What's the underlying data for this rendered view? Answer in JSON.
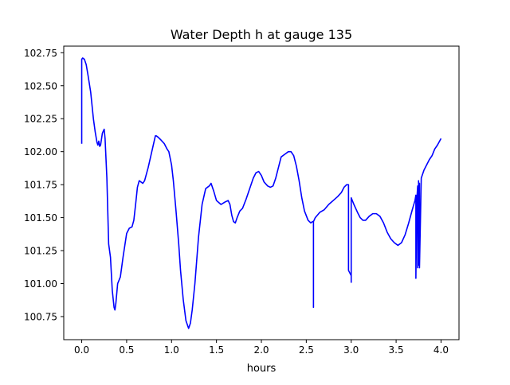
{
  "chart_data": {
    "type": "line",
    "title": "Water Depth h at gauge 135",
    "xlabel": "hours",
    "ylabel": "",
    "xlim": [
      -0.2,
      4.2
    ],
    "ylim": [
      100.575,
      102.8
    ],
    "xticks": [
      0.0,
      0.5,
      1.0,
      1.5,
      2.0,
      2.5,
      3.0,
      3.5,
      4.0
    ],
    "xtick_labels": [
      "0.0",
      "0.5",
      "1.0",
      "1.5",
      "2.0",
      "2.5",
      "3.0",
      "3.5",
      "4.0"
    ],
    "yticks": [
      100.75,
      101.0,
      101.25,
      101.5,
      101.75,
      102.0,
      102.25,
      102.5,
      102.75
    ],
    "ytick_labels": [
      "100.75",
      "101.00",
      "101.25",
      "101.50",
      "101.75",
      "102.00",
      "102.25",
      "102.50",
      "102.75"
    ],
    "grid": false,
    "series": [
      {
        "color": "#0000ff",
        "x": [
          0.0,
          0.0,
          0.01,
          0.03,
          0.05,
          0.07,
          0.1,
          0.13,
          0.15,
          0.17,
          0.18,
          0.19,
          0.2,
          0.21,
          0.23,
          0.25,
          0.26,
          0.28,
          0.3,
          0.32,
          0.34,
          0.36,
          0.37,
          0.38,
          0.4,
          0.43,
          0.46,
          0.5,
          0.53,
          0.56,
          0.58,
          0.6,
          0.62,
          0.64,
          0.66,
          0.68,
          0.7,
          0.74,
          0.78,
          0.82,
          0.83,
          0.85,
          0.88,
          0.92,
          0.95,
          0.97,
          1.0,
          1.02,
          1.05,
          1.08,
          1.1,
          1.13,
          1.16,
          1.19,
          1.21,
          1.23,
          1.26,
          1.3,
          1.34,
          1.38,
          1.4,
          1.42,
          1.44,
          1.47,
          1.5,
          1.55,
          1.6,
          1.63,
          1.65,
          1.67,
          1.69,
          1.71,
          1.73,
          1.76,
          1.79,
          1.83,
          1.87,
          1.91,
          1.94,
          1.97,
          2.0,
          2.03,
          2.07,
          2.1,
          2.13,
          2.16,
          2.19,
          2.22,
          2.26,
          2.3,
          2.33,
          2.36,
          2.39,
          2.42,
          2.45,
          2.48,
          2.52,
          2.55,
          2.57,
          2.58,
          2.58,
          2.58,
          2.6,
          2.65,
          2.7,
          2.75,
          2.8,
          2.85,
          2.89,
          2.92,
          2.95,
          2.97,
          2.97,
          3.0,
          3.0,
          3.0,
          3.03,
          3.07,
          3.1,
          3.13,
          3.16,
          3.2,
          3.24,
          3.28,
          3.32,
          3.36,
          3.4,
          3.44,
          3.48,
          3.52,
          3.56,
          3.6,
          3.64,
          3.68,
          3.71,
          3.72,
          3.72,
          3.73,
          3.74,
          3.74,
          3.75,
          3.75,
          3.75,
          3.76,
          3.76,
          3.78,
          3.81,
          3.84,
          3.87,
          3.9,
          3.93,
          3.96,
          4.0
        ],
        "y": [
          102.06,
          102.7,
          102.71,
          102.7,
          102.66,
          102.58,
          102.45,
          102.25,
          102.15,
          102.07,
          102.05,
          102.08,
          102.04,
          102.05,
          102.14,
          102.17,
          102.1,
          101.8,
          101.3,
          101.2,
          100.95,
          100.82,
          100.8,
          100.85,
          101.0,
          101.05,
          101.2,
          101.38,
          101.42,
          101.43,
          101.48,
          101.6,
          101.73,
          101.78,
          101.77,
          101.76,
          101.78,
          101.88,
          102.0,
          102.12,
          102.12,
          102.11,
          102.09,
          102.06,
          102.02,
          102.0,
          101.9,
          101.78,
          101.55,
          101.3,
          101.1,
          100.88,
          100.72,
          100.66,
          100.7,
          100.8,
          101.0,
          101.35,
          101.6,
          101.72,
          101.73,
          101.74,
          101.76,
          101.7,
          101.63,
          101.6,
          101.62,
          101.63,
          101.6,
          101.52,
          101.47,
          101.46,
          101.5,
          101.55,
          101.57,
          101.64,
          101.72,
          101.8,
          101.84,
          101.85,
          101.82,
          101.77,
          101.74,
          101.73,
          101.74,
          101.8,
          101.88,
          101.96,
          101.98,
          102.0,
          102.0,
          101.97,
          101.89,
          101.78,
          101.65,
          101.55,
          101.48,
          101.46,
          101.47,
          101.47,
          100.82,
          101.47,
          101.5,
          101.54,
          101.56,
          101.6,
          101.63,
          101.66,
          101.69,
          101.73,
          101.75,
          101.75,
          101.1,
          101.06,
          101.01,
          101.65,
          101.6,
          101.54,
          101.5,
          101.48,
          101.48,
          101.51,
          101.53,
          101.53,
          101.51,
          101.46,
          101.39,
          101.34,
          101.31,
          101.29,
          101.31,
          101.37,
          101.46,
          101.56,
          101.63,
          101.67,
          101.04,
          101.63,
          101.74,
          101.12,
          101.75,
          101.78,
          101.14,
          101.76,
          101.12,
          101.8,
          101.86,
          101.9,
          101.94,
          101.97,
          102.02,
          102.05,
          102.1
        ]
      }
    ]
  }
}
